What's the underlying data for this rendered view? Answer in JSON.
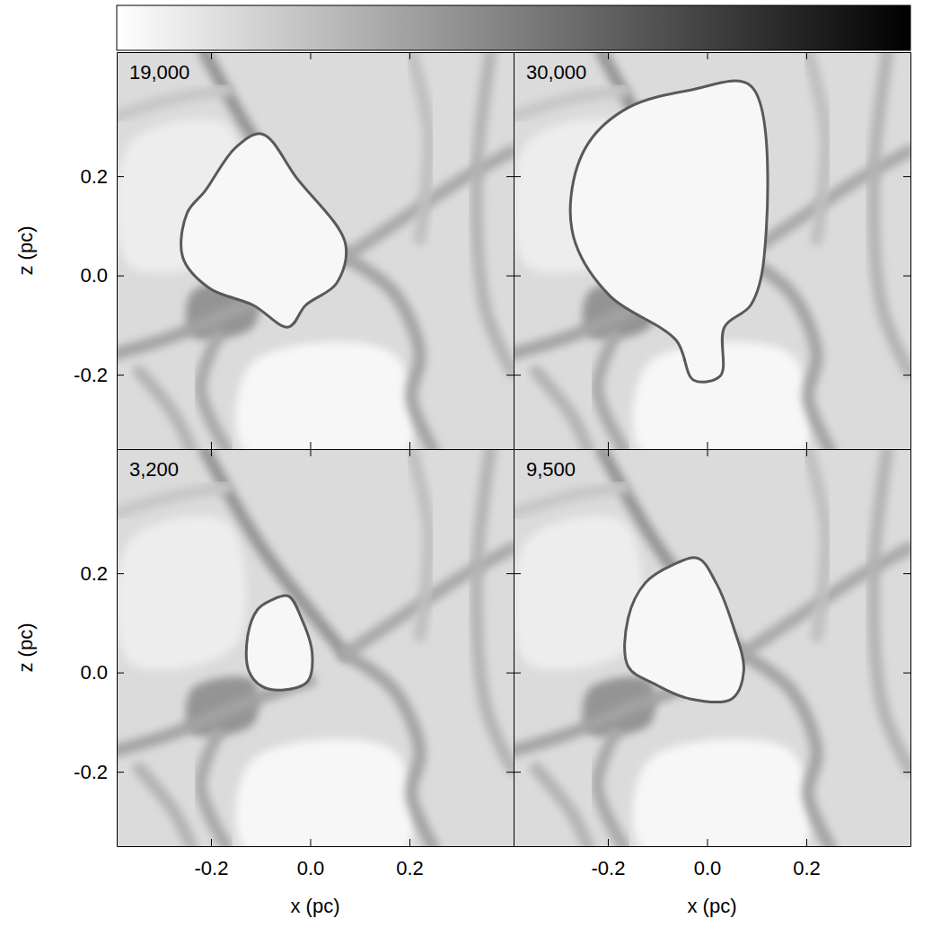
{
  "chart_data": {
    "type": "density_map",
    "x_label": "x (pc)",
    "y_label": "z (pc)",
    "xlim": [
      -0.39,
      0.41
    ],
    "ylim": [
      -0.35,
      0.45
    ],
    "xticks": [
      -0.2,
      {
        "value": 0,
        "label": "0.0"
      },
      0.2
    ],
    "yticks": [
      -0.2,
      {
        "value": 0,
        "label": "0.0"
      },
      0.2
    ],
    "tick_labels": true,
    "colorbar_range": [
      0,
      1
    ],
    "background_density": 0.14,
    "patches": [
      {
        "density": 0.42,
        "x": [
          -0.239,
          -0.115,
          -0.115,
          -0.239
        ],
        "z": [
          -0.034,
          -0.016,
          -0.104,
          -0.122
        ]
      },
      {
        "density": 0.03,
        "x": [
          -0.115,
          0.168,
          0.195,
          -0.133
        ],
        "z": [
          -0.175,
          -0.158,
          -0.352,
          -0.352
        ]
      },
      {
        "density": 0.07,
        "x": [
          -0.363,
          -0.168,
          -0.15,
          -0.363
        ],
        "z": [
          0.267,
          0.303,
          0.055,
          0.019
        ]
      }
    ],
    "filaments": [
      {
        "density": 0.42,
        "x": [
          -0.212,
          -0.097,
          0.027,
          0.071
        ],
        "z": [
          0.448,
          0.25,
          0.09,
          0.037
        ]
      },
      {
        "density": 0.36,
        "x": [
          0.071,
          0.168,
          0.221,
          0.204,
          0.248
        ],
        "z": [
          0.037,
          -0.034,
          -0.158,
          -0.246,
          -0.352
        ]
      },
      {
        "density": 0.34,
        "x": [
          0.071,
          0.204,
          0.31,
          0.407
        ],
        "z": [
          0.037,
          0.126,
          0.196,
          0.25
        ]
      },
      {
        "density": 0.3,
        "x": [
          0.363,
          0.336,
          0.354,
          0.407
        ],
        "z": [
          0.448,
          0.196,
          -0.069,
          -0.193
        ]
      },
      {
        "density": 0.36,
        "x": [
          0.0,
          -0.15,
          -0.274,
          -0.393
        ],
        "z": [
          -0.016,
          -0.069,
          -0.122,
          -0.158
        ]
      },
      {
        "density": 0.34,
        "x": [
          -0.186,
          -0.221,
          -0.168
        ],
        "z": [
          -0.122,
          -0.228,
          -0.352
        ]
      },
      {
        "density": 0.22,
        "x": [
          -0.393,
          -0.274,
          -0.168
        ],
        "z": [
          0.32,
          0.356,
          0.373
        ]
      },
      {
        "density": 0.3,
        "x": [
          -0.345,
          -0.274,
          -0.239
        ],
        "z": [
          -0.193,
          -0.281,
          -0.352
        ]
      },
      {
        "density": 0.25,
        "x": [
          0.204,
          0.239,
          0.221
        ],
        "z": [
          0.448,
          0.285,
          0.073
        ]
      }
    ],
    "panels": [
      {
        "label": "19,000",
        "bubble": {
          "interior_density": 0.03,
          "rim_density": 0.65,
          "x": [
            -0.15,
            -0.097,
            -0.027,
            0.071,
            0.053,
            -0.009,
            -0.044,
            -0.115,
            -0.204,
            -0.257,
            -0.248,
            -0.212
          ],
          "z": [
            0.258,
            0.285,
            0.196,
            0.064,
            -0.016,
            -0.06,
            -0.104,
            -0.06,
            -0.025,
            0.037,
            0.126,
            0.17
          ]
        }
      },
      {
        "label": "30,000",
        "bubble": {
          "interior_density": 0.03,
          "rim_density": 0.65,
          "x": [
            0.088,
            0.115,
            0.088,
            0.035,
            0.027,
            -0.027,
            -0.062,
            -0.195,
            -0.265,
            -0.274,
            -0.239,
            -0.159,
            -0.035
          ],
          "z": [
            0.382,
            0.037,
            -0.06,
            -0.104,
            -0.202,
            -0.211,
            -0.131,
            -0.042,
            0.064,
            0.161,
            0.267,
            0.338,
            0.373
          ]
        }
      },
      {
        "label": "3,200",
        "bubble": {
          "interior_density": 0.03,
          "rim_density": 0.65,
          "x": [
            -0.08,
            -0.044,
            -0.018,
            0.004,
            -0.005,
            -0.053,
            -0.097,
            -0.124,
            -0.126,
            -0.106
          ],
          "z": [
            0.145,
            0.154,
            0.11,
            0.039,
            -0.018,
            -0.035,
            -0.028,
            0.004,
            0.074,
            0.127
          ]
        }
      },
      {
        "label": "9,500",
        "bubble": {
          "interior_density": 0.03,
          "rim_density": 0.65,
          "x": [
            -0.071,
            -0.018,
            0.018,
            0.053,
            0.074,
            0.05,
            -0.035,
            -0.106,
            -0.159,
            -0.159,
            -0.124
          ],
          "z": [
            0.216,
            0.23,
            0.181,
            0.092,
            0.004,
            -0.053,
            -0.053,
            -0.023,
            0.012,
            0.11,
            0.181
          ]
        }
      }
    ]
  }
}
